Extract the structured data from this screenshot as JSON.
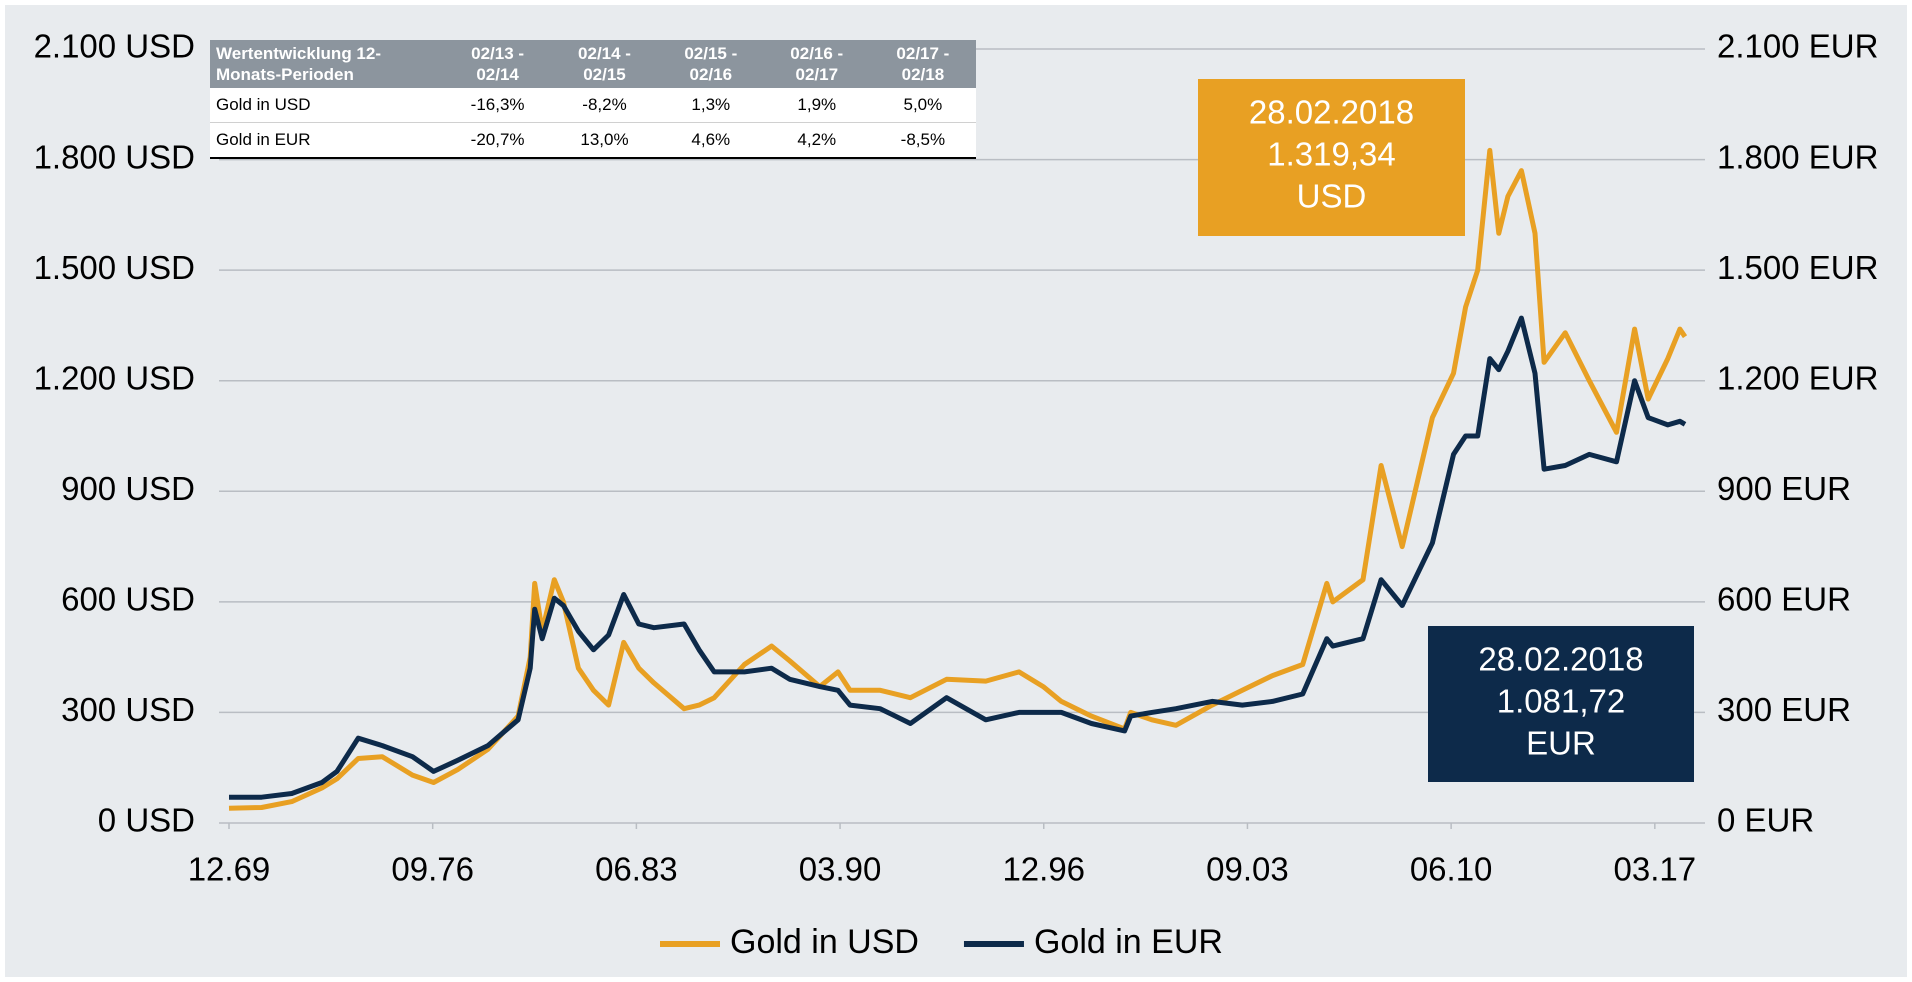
{
  "chart_data": {
    "type": "line",
    "x": [
      1969.92,
      1971,
      1972,
      1973,
      1973.5,
      1974.2,
      1975,
      1976,
      1976.7,
      1977.5,
      1978.5,
      1979.5,
      1979.9,
      1980.05,
      1980.3,
      1980.7,
      1981.0,
      1981.5,
      1982.0,
      1982.5,
      1983.0,
      1983.5,
      1984,
      1985,
      1985.5,
      1986,
      1987,
      1987.9,
      1988.5,
      1989.5,
      1990.1,
      1990.5,
      1991.5,
      1992.5,
      1993.7,
      1995,
      1996.1,
      1996.9,
      1997.5,
      1998.5,
      1999.6,
      1999.8,
      2000.5,
      2001.3,
      2002.5,
      2003.5,
      2004.5,
      2005.5,
      2006.3,
      2006.5,
      2007.5,
      2008.1,
      2008.8,
      2009.8,
      2010.5,
      2010.9,
      2011.3,
      2011.7,
      2012.0,
      2012.3,
      2012.75,
      2013.2,
      2013.5,
      2014.2,
      2015.0,
      2015.9,
      2016.5,
      2016.95,
      2017.6,
      2018.0,
      2018.17
    ],
    "series": [
      {
        "name": "Gold in USD",
        "color": "#e8a023",
        "values": [
          40,
          42,
          58,
          95,
          120,
          175,
          180,
          130,
          110,
          145,
          200,
          290,
          450,
          650,
          520,
          660,
          600,
          420,
          360,
          320,
          490,
          420,
          380,
          310,
          320,
          340,
          430,
          480,
          440,
          370,
          410,
          360,
          360,
          340,
          390,
          385,
          410,
          370,
          330,
          290,
          255,
          300,
          280,
          265,
          320,
          360,
          400,
          430,
          650,
          600,
          660,
          970,
          750,
          1100,
          1220,
          1400,
          1500,
          1825,
          1600,
          1700,
          1770,
          1600,
          1250,
          1330,
          1200,
          1060,
          1340,
          1150,
          1260,
          1340,
          1319.34
        ]
      },
      {
        "name": "Gold in EUR",
        "color": "#0d2a4a",
        "axis": "y2",
        "values": [
          70,
          70,
          80,
          110,
          140,
          230,
          210,
          180,
          140,
          170,
          210,
          280,
          420,
          580,
          500,
          610,
          590,
          520,
          470,
          510,
          620,
          540,
          530,
          540,
          470,
          410,
          410,
          420,
          390,
          370,
          360,
          320,
          310,
          270,
          340,
          280,
          300,
          300,
          300,
          270,
          250,
          290,
          300,
          310,
          330,
          320,
          330,
          350,
          500,
          480,
          500,
          660,
          590,
          760,
          1000,
          1050,
          1050,
          1260,
          1230,
          1280,
          1370,
          1220,
          960,
          970,
          1000,
          980,
          1200,
          1100,
          1080,
          1090,
          1081.72
        ]
      }
    ],
    "xlim": [
      1969.92,
      2018.17
    ],
    "xticks": [
      {
        "value": 1969.92,
        "label": "12.69"
      },
      {
        "value": 1976.67,
        "label": "09.76"
      },
      {
        "value": 1983.42,
        "label": "06.83"
      },
      {
        "value": 1990.17,
        "label": "03.90"
      },
      {
        "value": 1996.92,
        "label": "12.96"
      },
      {
        "value": 2003.67,
        "label": "09.03"
      },
      {
        "value": 2010.42,
        "label": "06.10"
      },
      {
        "value": 2017.17,
        "label": "03.17"
      }
    ],
    "ylim": [
      0,
      2100
    ],
    "yticks": [
      {
        "value": 0,
        "label": "0 USD"
      },
      {
        "value": 300,
        "label": "300 USD"
      },
      {
        "value": 600,
        "label": "600 USD"
      },
      {
        "value": 900,
        "label": "900 USD"
      },
      {
        "value": 1200,
        "label": "1.200 USD"
      },
      {
        "value": 1500,
        "label": "1.500 USD"
      },
      {
        "value": 1800,
        "label": "1.800 USD"
      },
      {
        "value": 2100,
        "label": "2.100 USD"
      }
    ],
    "y2lim": [
      0,
      2100
    ],
    "y2ticks": [
      {
        "value": 0,
        "label": "0 EUR"
      },
      {
        "value": 300,
        "label": "300 EUR"
      },
      {
        "value": 600,
        "label": "600 EUR"
      },
      {
        "value": 900,
        "label": "900 EUR"
      },
      {
        "value": 1200,
        "label": "1.200 EUR"
      },
      {
        "value": 1500,
        "label": "1.500 EUR"
      },
      {
        "value": 1800,
        "label": "1.800 EUR"
      },
      {
        "value": 2100,
        "label": "2.100 EUR"
      }
    ],
    "grid": true,
    "legend": "bottom",
    "annotations": [
      {
        "lines": [
          "28.02.2018",
          "1.319,34",
          "USD"
        ],
        "color": "#e8a023"
      },
      {
        "lines": [
          "28.02.2018",
          "1.081,72",
          "EUR"
        ],
        "color": "#0d2a4a"
      }
    ]
  },
  "table": {
    "header": [
      "Wertentwicklung 12-Monats-Perioden",
      "02/13 - 02/14",
      "02/14 - 02/15",
      "02/15 - 02/16",
      "02/16 - 02/17",
      "02/17 - 02/18"
    ],
    "rows": [
      [
        "Gold in USD",
        "-16,3%",
        "-8,2%",
        "1,3%",
        "1,9%",
        "5,0%"
      ],
      [
        "Gold in EUR",
        "-20,7%",
        "13,0%",
        "4,6%",
        "4,2%",
        "-8,5%"
      ]
    ]
  }
}
